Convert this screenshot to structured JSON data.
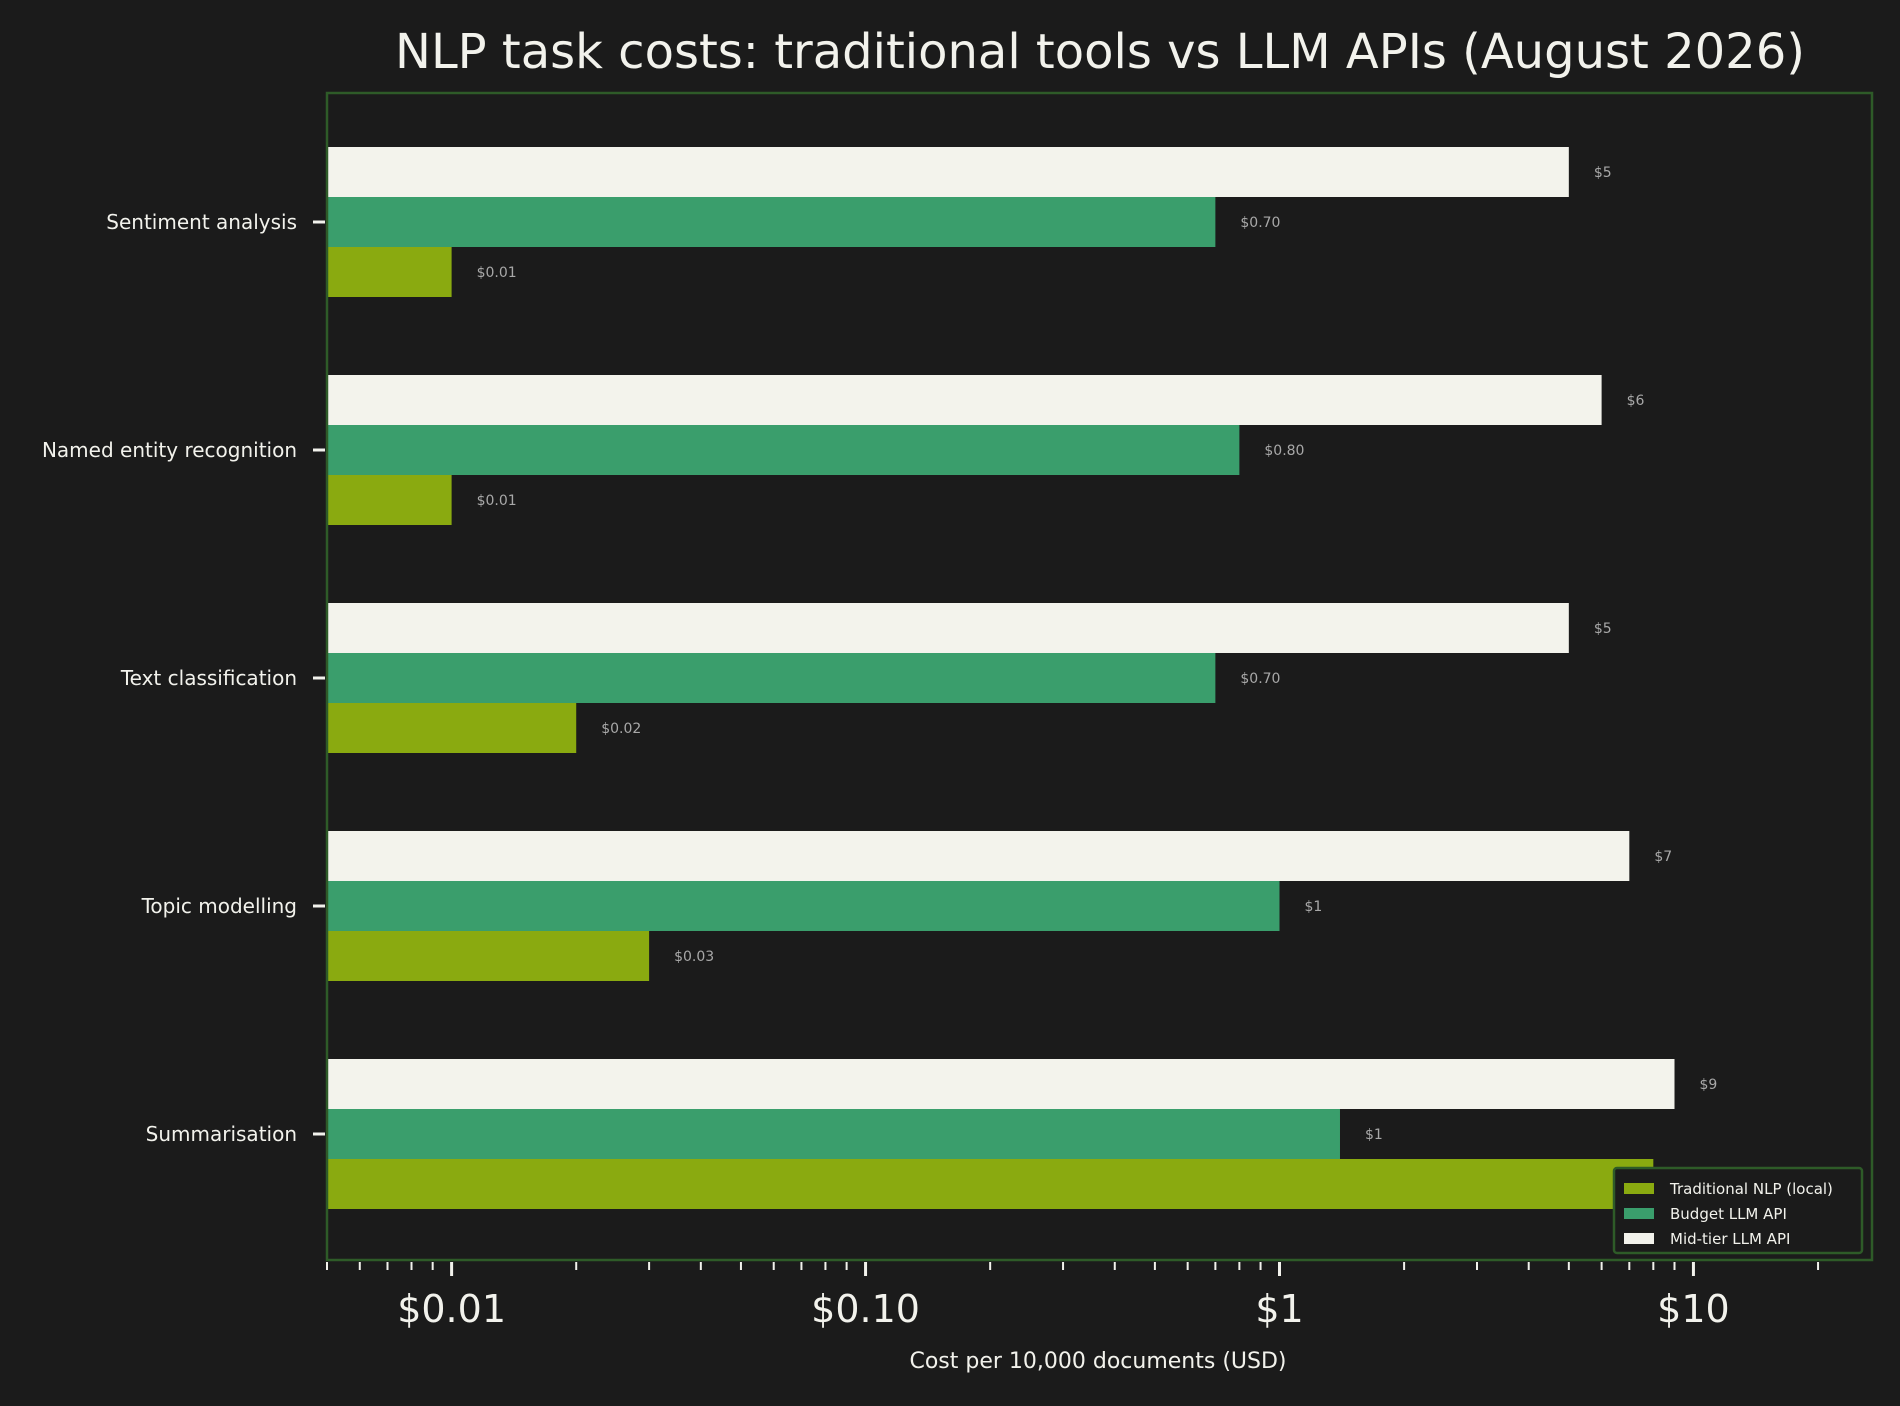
{
  "chart_data": {
    "type": "bar",
    "orientation": "horizontal",
    "title": "NLP task costs: traditional tools vs LLM APIs (August 2026)",
    "xlabel": "Cost per 10,000 documents (USD)",
    "ylabel": "",
    "x_scale": "log",
    "xlim": [
      0.005,
      27
    ],
    "xticks": [
      {
        "value": 0.01,
        "label": "$0.01"
      },
      {
        "value": 0.1,
        "label": "$0.10"
      },
      {
        "value": 1,
        "label": "$1"
      },
      {
        "value": 10,
        "label": "$10"
      }
    ],
    "categories": [
      "Summarisation",
      "Topic modelling",
      "Text classification",
      "Named entity recognition",
      "Sentiment analysis"
    ],
    "series": [
      {
        "name": "Traditional NLP (local)",
        "color": "#8aaa10",
        "values": [
          8,
          0.03,
          0.02,
          0.01,
          0.01
        ],
        "labels": [
          "$8",
          "$0.03",
          "$0.02",
          "$0.01",
          "$0.01"
        ]
      },
      {
        "name": "Budget LLM API",
        "color": "#3a9e6c",
        "values": [
          1.4,
          1,
          0.7,
          0.8,
          0.7
        ],
        "labels": [
          "$1",
          "$1",
          "$0.70",
          "$0.80",
          "$0.70"
        ]
      },
      {
        "name": "Mid-tier LLM API",
        "color": "#f3f3ec",
        "values": [
          9,
          7,
          5,
          6,
          5
        ],
        "labels": [
          "$9",
          "$7",
          "$5",
          "$6",
          "$5"
        ]
      }
    ],
    "grid": false,
    "legend_position": "lower-right",
    "colors": {
      "background": "#1b1b1b",
      "frame": "#2e5b28",
      "text": "#f2f2ec",
      "value_label": "#a8a8a8"
    }
  }
}
